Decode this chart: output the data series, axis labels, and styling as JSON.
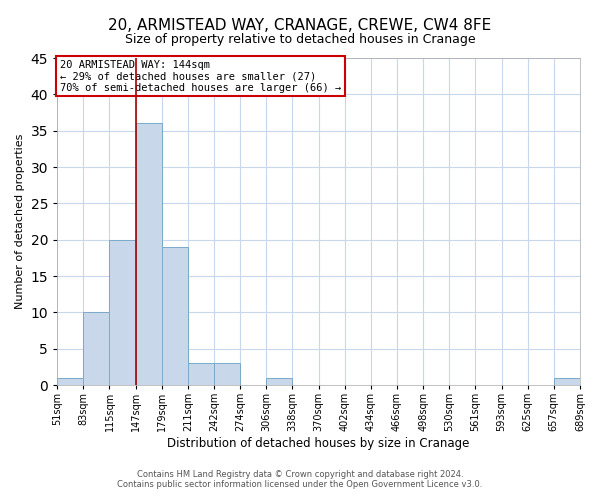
{
  "title": "20, ARMISTEAD WAY, CRANAGE, CREWE, CW4 8FE",
  "subtitle": "Size of property relative to detached houses in Cranage",
  "xlabel": "Distribution of detached houses by size in Cranage",
  "ylabel": "Number of detached properties",
  "bin_labels": [
    "51sqm",
    "83sqm",
    "115sqm",
    "147sqm",
    "179sqm",
    "211sqm",
    "242sqm",
    "274sqm",
    "306sqm",
    "338sqm",
    "370sqm",
    "402sqm",
    "434sqm",
    "466sqm",
    "498sqm",
    "530sqm",
    "561sqm",
    "593sqm",
    "625sqm",
    "657sqm",
    "689sqm"
  ],
  "bar_heights": [
    1,
    10,
    20,
    36,
    19,
    3,
    3,
    0,
    1,
    0,
    0,
    0,
    0,
    0,
    0,
    0,
    0,
    0,
    0,
    1
  ],
  "bar_color": "#c8d8ea",
  "bar_edge_color": "#7aaaca",
  "property_line_x": 3,
  "property_line_color": "#aa0000",
  "ylim": [
    0,
    45
  ],
  "yticks": [
    0,
    5,
    10,
    15,
    20,
    25,
    30,
    35,
    40,
    45
  ],
  "annotation_text": "20 ARMISTEAD WAY: 144sqm\n← 29% of detached houses are smaller (27)\n70% of semi-detached houses are larger (66) →",
  "annotation_box_color": "#ffffff",
  "annotation_box_edge_color": "#cc0000",
  "footer_line1": "Contains HM Land Registry data © Crown copyright and database right 2024.",
  "footer_line2": "Contains public sector information licensed under the Open Government Licence v3.0.",
  "background_color": "#ffffff",
  "grid_color": "#c8d8ea",
  "title_fontsize": 11,
  "subtitle_fontsize": 9,
  "ylabel_fontsize": 8,
  "xlabel_fontsize": 8.5,
  "tick_fontsize": 7,
  "annotation_fontsize": 7.5,
  "footer_fontsize": 6
}
